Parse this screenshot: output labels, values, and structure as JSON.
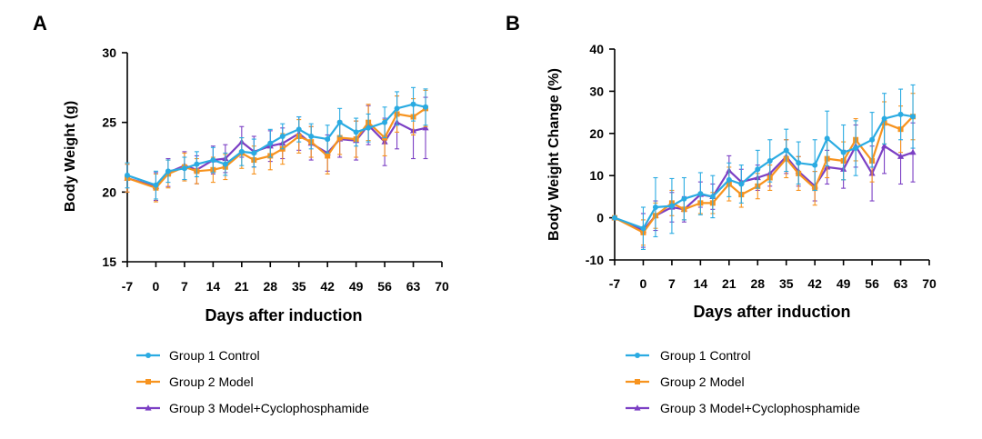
{
  "colors": {
    "control": "#2AABE2",
    "model": "#F7931E",
    "cyclo": "#7B3FC4"
  },
  "chart_data": [
    {
      "panel": "A",
      "type": "line",
      "ylabel": "Body Weight (g)",
      "xlabel": "Days after induction",
      "xlim": [
        -7,
        70
      ],
      "ylim": [
        15,
        30
      ],
      "xticks": [
        "-7",
        "0",
        "7",
        "14",
        "21",
        "28",
        "35",
        "42",
        "49",
        "56",
        "63",
        "70"
      ],
      "yticks": [
        "15",
        "20",
        "25",
        "30"
      ],
      "x": [
        -7,
        0,
        3,
        7,
        10,
        14,
        17,
        21,
        24,
        28,
        31,
        35,
        38,
        42,
        45,
        49,
        52,
        56,
        59,
        63,
        66
      ],
      "series": [
        {
          "name": "Group 1 Control",
          "color_key": "control",
          "marker": "circle",
          "values": [
            21.2,
            20.5,
            21.5,
            21.7,
            22.0,
            22.3,
            22.0,
            22.9,
            22.8,
            23.5,
            24.0,
            24.5,
            24.0,
            23.8,
            25.0,
            24.3,
            24.6,
            25.0,
            26.0,
            26.3,
            26.1
          ],
          "errors": [
            0.9,
            1.0,
            0.8,
            0.8,
            0.9,
            0.9,
            0.8,
            1.0,
            1.0,
            1.0,
            0.9,
            0.9,
            0.9,
            1.0,
            1.0,
            1.0,
            1.0,
            1.1,
            1.2,
            1.2,
            1.3
          ]
        },
        {
          "name": "Group 2 Model",
          "color_key": "model",
          "marker": "square",
          "values": [
            21.0,
            20.3,
            21.3,
            21.8,
            21.5,
            21.6,
            21.8,
            22.8,
            22.3,
            22.6,
            23.1,
            24.0,
            23.6,
            22.6,
            23.9,
            23.8,
            25.0,
            23.9,
            25.6,
            25.4,
            26.0
          ],
          "errors": [
            1.0,
            1.0,
            1.0,
            1.0,
            0.9,
            0.9,
            0.9,
            1.1,
            1.0,
            1.0,
            1.1,
            1.2,
            1.1,
            1.3,
            1.2,
            1.3,
            1.3,
            1.3,
            1.3,
            1.3,
            1.3
          ]
        },
        {
          "name": "Group 3 Model+Cyclophosphamide",
          "color_key": "cyclo",
          "marker": "triangle",
          "values": [
            21.0,
            20.4,
            21.4,
            21.9,
            21.6,
            22.3,
            22.4,
            23.6,
            22.9,
            23.3,
            23.5,
            24.2,
            23.5,
            22.8,
            23.8,
            23.7,
            24.8,
            23.6,
            25.0,
            24.4,
            24.6
          ],
          "errors": [
            1.0,
            1.0,
            1.0,
            1.0,
            1.0,
            1.0,
            1.0,
            1.1,
            1.1,
            1.1,
            1.1,
            1.2,
            1.2,
            1.3,
            1.3,
            1.4,
            1.4,
            1.7,
            1.9,
            2.0,
            2.2
          ]
        }
      ]
    },
    {
      "panel": "B",
      "type": "line",
      "ylabel": "Body Weight Change (%)",
      "xlabel": "Days after induction",
      "xlim": [
        -7,
        70
      ],
      "ylim": [
        -10,
        40
      ],
      "xticks": [
        "-7",
        "0",
        "7",
        "14",
        "21",
        "28",
        "35",
        "42",
        "49",
        "56",
        "63",
        "70"
      ],
      "yticks": [
        "-10",
        "0",
        "10",
        "20",
        "30",
        "40"
      ],
      "x": [
        -7,
        0,
        3,
        7,
        10,
        14,
        17,
        21,
        24,
        28,
        31,
        35,
        38,
        42,
        45,
        49,
        52,
        56,
        59,
        63,
        66
      ],
      "series": [
        {
          "name": "Group 1 Control",
          "color_key": "control",
          "marker": "circle",
          "values": [
            0,
            -2.5,
            2.5,
            2.8,
            4.5,
            5.7,
            5.0,
            9.0,
            8.0,
            11.5,
            13.5,
            16.0,
            13.0,
            12.5,
            18.8,
            15.5,
            16.5,
            18.5,
            23.5,
            24.5,
            24.0
          ],
          "errors": [
            0,
            5.0,
            7.0,
            6.5,
            5.0,
            5.0,
            5.0,
            4.0,
            4.5,
            4.5,
            5.0,
            5.0,
            5.0,
            6.0,
            6.5,
            6.5,
            6.5,
            6.5,
            6.0,
            6.0,
            7.5
          ]
        },
        {
          "name": "Group 2 Model",
          "color_key": "model",
          "marker": "square",
          "values": [
            0,
            -3.5,
            0.5,
            3.5,
            2.0,
            3.5,
            3.5,
            8.0,
            5.5,
            7.5,
            9.5,
            14.0,
            10.5,
            7.0,
            14.0,
            13.5,
            18.5,
            13.5,
            22.5,
            21.0,
            24.0
          ],
          "errors": [
            0,
            3.0,
            3.0,
            3.0,
            2.5,
            2.5,
            2.5,
            4.0,
            3.0,
            3.0,
            3.0,
            4.5,
            4.0,
            4.0,
            4.5,
            4.5,
            5.0,
            5.0,
            5.0,
            5.5,
            5.5
          ]
        },
        {
          "name": "Group 3 Model+Cyclophosphamide",
          "color_key": "cyclo",
          "marker": "triangle",
          "values": [
            0,
            -3.0,
            0.5,
            2.5,
            2.0,
            5.5,
            5.0,
            11.2,
            8.5,
            9.5,
            10.5,
            14.5,
            11.0,
            7.5,
            12.0,
            11.5,
            17.0,
            10.5,
            17.0,
            14.5,
            15.5
          ],
          "errors": [
            0,
            4.0,
            3.5,
            3.5,
            3.0,
            3.0,
            3.0,
            3.5,
            3.0,
            3.0,
            3.0,
            4.0,
            3.5,
            3.5,
            4.0,
            4.5,
            5.0,
            6.5,
            6.5,
            6.5,
            7.0
          ]
        }
      ]
    }
  ]
}
